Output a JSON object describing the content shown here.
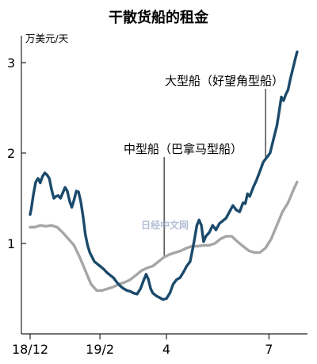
{
  "chart_data": {
    "type": "line",
    "title": "干散货船的租金",
    "ylabel": "万美元/天",
    "xlabel": "",
    "ylim": [
      0,
      3.3
    ],
    "y_ticks": [
      1,
      2,
      3
    ],
    "x_range": [
      "2018-12-01",
      "2019-07-31"
    ],
    "x_ticks": [
      {
        "date": "2018-12-01",
        "label": "18/12"
      },
      {
        "date": "2019-02-01",
        "label": "19/2"
      },
      {
        "date": "2019-04-01",
        "label": "4"
      },
      {
        "date": "2019-07-01",
        "label": "7"
      }
    ],
    "grid": false,
    "colors": {
      "cape": "#1b4a6b",
      "panamax": "#a6a6a6",
      "axis": "#222222",
      "watermark": "#9aa8c8"
    },
    "series": [
      {
        "name": "大型船（好望角型船）",
        "color": "#1b4a6b",
        "points": [
          [
            "2018-12-01",
            1.32
          ],
          [
            "2018-12-02",
            1.38
          ],
          [
            "2018-12-04",
            1.55
          ],
          [
            "2018-12-06",
            1.68
          ],
          [
            "2018-12-08",
            1.72
          ],
          [
            "2018-12-10",
            1.67
          ],
          [
            "2018-12-12",
            1.74
          ],
          [
            "2018-12-14",
            1.78
          ],
          [
            "2018-12-16",
            1.76
          ],
          [
            "2018-12-18",
            1.72
          ],
          [
            "2018-12-20",
            1.6
          ],
          [
            "2018-12-22",
            1.5
          ],
          [
            "2018-12-24",
            1.52
          ],
          [
            "2018-12-26",
            1.53
          ],
          [
            "2018-12-28",
            1.5
          ],
          [
            "2018-12-30",
            1.56
          ],
          [
            "2019-01-01",
            1.62
          ],
          [
            "2019-01-03",
            1.58
          ],
          [
            "2019-01-05",
            1.47
          ],
          [
            "2019-01-07",
            1.4
          ],
          [
            "2019-01-09",
            1.48
          ],
          [
            "2019-01-11",
            1.58
          ],
          [
            "2019-01-13",
            1.57
          ],
          [
            "2019-01-15",
            1.46
          ],
          [
            "2019-01-17",
            1.3
          ],
          [
            "2019-01-19",
            1.1
          ],
          [
            "2019-01-21",
            0.98
          ],
          [
            "2019-01-23",
            0.9
          ],
          [
            "2019-01-25",
            0.85
          ],
          [
            "2019-01-27",
            0.8
          ],
          [
            "2019-01-29",
            0.78
          ],
          [
            "2019-02-01",
            0.75
          ],
          [
            "2019-02-04",
            0.72
          ],
          [
            "2019-02-07",
            0.68
          ],
          [
            "2019-02-10",
            0.65
          ],
          [
            "2019-02-13",
            0.62
          ],
          [
            "2019-02-16",
            0.57
          ],
          [
            "2019-02-19",
            0.53
          ],
          [
            "2019-02-22",
            0.5
          ],
          [
            "2019-02-25",
            0.48
          ],
          [
            "2019-02-28",
            0.47
          ],
          [
            "2019-03-03",
            0.45
          ],
          [
            "2019-03-06",
            0.44
          ],
          [
            "2019-03-09",
            0.5
          ],
          [
            "2019-03-12",
            0.6
          ],
          [
            "2019-03-14",
            0.66
          ],
          [
            "2019-03-16",
            0.6
          ],
          [
            "2019-03-18",
            0.5
          ],
          [
            "2019-03-20",
            0.45
          ],
          [
            "2019-03-23",
            0.42
          ],
          [
            "2019-03-26",
            0.4
          ],
          [
            "2019-03-29",
            0.38
          ],
          [
            "2019-04-01",
            0.39
          ],
          [
            "2019-04-04",
            0.45
          ],
          [
            "2019-04-07",
            0.55
          ],
          [
            "2019-04-10",
            0.6
          ],
          [
            "2019-04-13",
            0.62
          ],
          [
            "2019-04-16",
            0.68
          ],
          [
            "2019-04-19",
            0.75
          ],
          [
            "2019-04-22",
            0.8
          ],
          [
            "2019-04-24",
            0.92
          ],
          [
            "2019-04-26",
            1.05
          ],
          [
            "2019-04-28",
            1.2
          ],
          [
            "2019-04-30",
            1.26
          ],
          [
            "2019-05-02",
            1.2
          ],
          [
            "2019-05-04",
            1.02
          ],
          [
            "2019-05-06",
            1.08
          ],
          [
            "2019-05-09",
            1.12
          ],
          [
            "2019-05-12",
            1.2
          ],
          [
            "2019-05-15",
            1.15
          ],
          [
            "2019-05-18",
            1.22
          ],
          [
            "2019-05-21",
            1.25
          ],
          [
            "2019-05-24",
            1.28
          ],
          [
            "2019-05-27",
            1.35
          ],
          [
            "2019-05-30",
            1.42
          ],
          [
            "2019-06-02",
            1.37
          ],
          [
            "2019-06-05",
            1.35
          ],
          [
            "2019-06-08",
            1.45
          ],
          [
            "2019-06-10",
            1.44
          ],
          [
            "2019-06-12",
            1.55
          ],
          [
            "2019-06-14",
            1.52
          ],
          [
            "2019-06-17",
            1.62
          ],
          [
            "2019-06-20",
            1.7
          ],
          [
            "2019-06-23",
            1.8
          ],
          [
            "2019-06-26",
            1.9
          ],
          [
            "2019-06-29",
            1.95
          ],
          [
            "2019-07-02",
            2.0
          ],
          [
            "2019-07-05",
            2.15
          ],
          [
            "2019-07-08",
            2.3
          ],
          [
            "2019-07-10",
            2.45
          ],
          [
            "2019-07-12",
            2.62
          ],
          [
            "2019-07-14",
            2.58
          ],
          [
            "2019-07-16",
            2.65
          ],
          [
            "2019-07-18",
            2.7
          ],
          [
            "2019-07-20",
            2.82
          ],
          [
            "2019-07-22",
            2.92
          ],
          [
            "2019-07-24",
            3.02
          ],
          [
            "2019-07-26",
            3.12
          ]
        ]
      },
      {
        "name": "中型船（巴拿马型船）",
        "color": "#a6a6a6",
        "points": [
          [
            "2018-12-01",
            1.18
          ],
          [
            "2018-12-05",
            1.18
          ],
          [
            "2018-12-10",
            1.2
          ],
          [
            "2018-12-15",
            1.19
          ],
          [
            "2018-12-20",
            1.2
          ],
          [
            "2018-12-25",
            1.18
          ],
          [
            "2018-12-30",
            1.12
          ],
          [
            "2019-01-04",
            1.05
          ],
          [
            "2019-01-09",
            0.98
          ],
          [
            "2019-01-14",
            0.85
          ],
          [
            "2019-01-19",
            0.7
          ],
          [
            "2019-01-24",
            0.55
          ],
          [
            "2019-01-29",
            0.48
          ],
          [
            "2019-02-03",
            0.48
          ],
          [
            "2019-02-08",
            0.5
          ],
          [
            "2019-02-13",
            0.52
          ],
          [
            "2019-02-18",
            0.55
          ],
          [
            "2019-02-23",
            0.57
          ],
          [
            "2019-02-28",
            0.6
          ],
          [
            "2019-03-05",
            0.65
          ],
          [
            "2019-03-10",
            0.7
          ],
          [
            "2019-03-15",
            0.73
          ],
          [
            "2019-03-20",
            0.75
          ],
          [
            "2019-03-25",
            0.8
          ],
          [
            "2019-03-30",
            0.85
          ],
          [
            "2019-04-04",
            0.88
          ],
          [
            "2019-04-09",
            0.9
          ],
          [
            "2019-04-14",
            0.92
          ],
          [
            "2019-04-19",
            0.95
          ],
          [
            "2019-04-24",
            0.97
          ],
          [
            "2019-04-29",
            0.97
          ],
          [
            "2019-05-04",
            0.98
          ],
          [
            "2019-05-09",
            0.98
          ],
          [
            "2019-05-14",
            1.0
          ],
          [
            "2019-05-19",
            1.05
          ],
          [
            "2019-05-24",
            1.08
          ],
          [
            "2019-05-29",
            1.08
          ],
          [
            "2019-06-03",
            1.02
          ],
          [
            "2019-06-08",
            0.97
          ],
          [
            "2019-06-13",
            0.92
          ],
          [
            "2019-06-18",
            0.9
          ],
          [
            "2019-06-23",
            0.9
          ],
          [
            "2019-06-28",
            0.95
          ],
          [
            "2019-07-03",
            1.05
          ],
          [
            "2019-07-08",
            1.2
          ],
          [
            "2019-07-13",
            1.35
          ],
          [
            "2019-07-18",
            1.45
          ],
          [
            "2019-07-23",
            1.6
          ],
          [
            "2019-07-26",
            1.68
          ]
        ]
      }
    ],
    "annotations": [
      {
        "text": "大型船（好望角型船）",
        "series": 0,
        "date": "2019-06-28"
      },
      {
        "text": "中型船（巴拿马型船）",
        "series": 1,
        "date": "2019-03-30"
      }
    ],
    "watermark": "日经中文网"
  }
}
